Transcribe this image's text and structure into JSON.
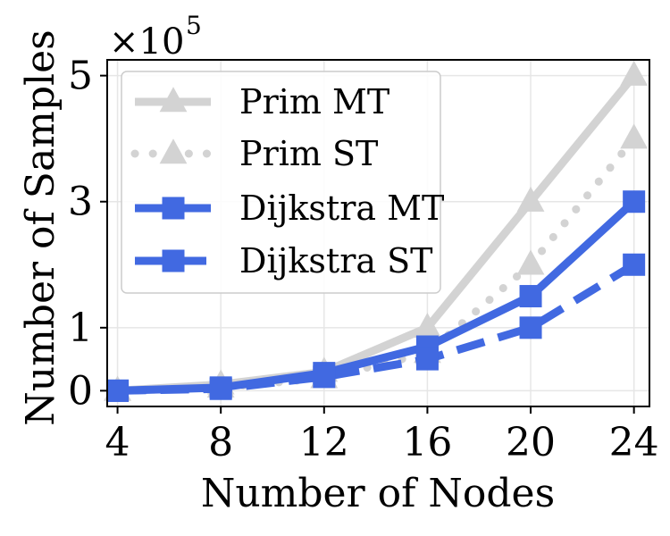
{
  "chart_data": {
    "type": "line",
    "x": [
      4,
      8,
      12,
      16,
      20,
      24
    ],
    "xlabel": "Number of Nodes",
    "ylabel": "Number of Samples",
    "y_scale_mantissa": "×10",
    "y_scale_exponent": "5",
    "xlim": [
      3.6,
      24.6
    ],
    "ylim": [
      -0.25,
      5.25
    ],
    "xticks": [
      "4",
      "8",
      "12",
      "16",
      "20",
      "24"
    ],
    "yticks": [
      {
        "value": 0,
        "label": "0"
      },
      {
        "value": 1,
        "label": "1"
      },
      {
        "value": 3,
        "label": "3"
      },
      {
        "value": 5,
        "label": "5"
      }
    ],
    "grid": true,
    "legend_position": "top-left",
    "series": [
      {
        "name": "Prim MT",
        "values": [
          0.0,
          0.1,
          0.3,
          1.0,
          3.0,
          5.0
        ],
        "color": "#d3d3d3",
        "line": "solid",
        "marker": "triangle"
      },
      {
        "name": "Prim ST",
        "values": [
          0.0,
          0.05,
          0.2,
          0.6,
          2.0,
          4.0
        ],
        "color": "#d3d3d3",
        "line": "dotted",
        "marker": "triangle"
      },
      {
        "name": "Dijkstra MT",
        "values": [
          0.0,
          0.05,
          0.28,
          0.7,
          1.5,
          3.0
        ],
        "color": "#4169e1",
        "line": "solid",
        "marker": "square"
      },
      {
        "name": "Dijkstra ST",
        "values": [
          0.0,
          0.03,
          0.22,
          0.5,
          1.0,
          2.0
        ],
        "color": "#4169e1",
        "line": "dashed",
        "marker": "square"
      }
    ]
  }
}
